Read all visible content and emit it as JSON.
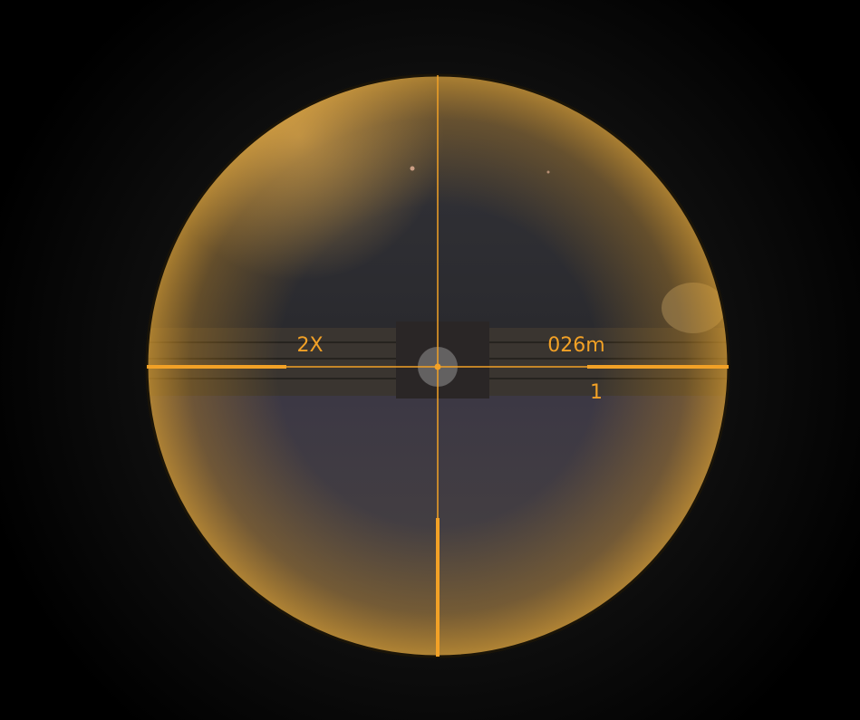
{
  "hud": {
    "zoom": "2X",
    "range": "026m",
    "count": "1"
  }
}
